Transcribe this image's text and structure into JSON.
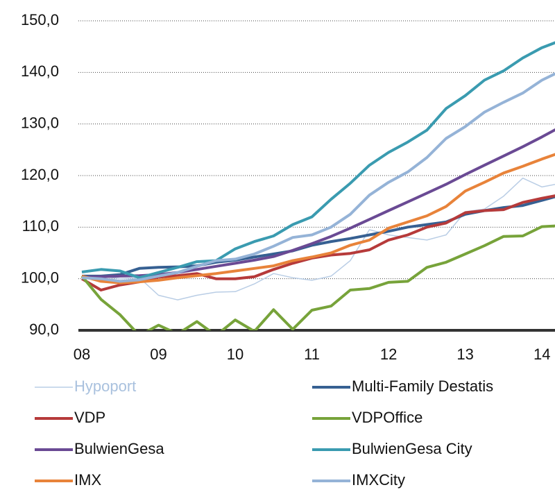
{
  "chart_data": {
    "type": "line",
    "x": [
      2008,
      2008.25,
      2008.5,
      2008.75,
      2009,
      2009.25,
      2009.5,
      2009.75,
      2010,
      2010.25,
      2010.5,
      2010.75,
      2011,
      2011.25,
      2011.5,
      2011.75,
      2012,
      2012.25,
      2012.5,
      2012.75,
      2013,
      2013.25,
      2013.5,
      2013.75,
      2014,
      2014.25
    ],
    "series": [
      {
        "name": "Hypoport",
        "color": "#b9cde5",
        "width": 1.5,
        "values": [
          100,
          100.5,
          100,
          100.2,
          96.8,
          95.9,
          96.8,
          97.4,
          97.5,
          99,
          101,
          100.2,
          99.7,
          100.5,
          103.5,
          109.5,
          108.5,
          108,
          107.5,
          108.5,
          113,
          113.5,
          116,
          119.5,
          117.8,
          118.5
        ]
      },
      {
        "name": "Multi-Family Destatis",
        "color": "#366092",
        "width": 4,
        "values": [
          100.5,
          100.5,
          100.8,
          102,
          102.2,
          102.3,
          102.5,
          103.2,
          103.6,
          104.2,
          104.8,
          105.4,
          106.5,
          107.2,
          107.8,
          108.5,
          109.2,
          110,
          110.5,
          111,
          112.5,
          113.2,
          113.8,
          114.2,
          115.2,
          116.2
        ]
      },
      {
        "name": "VDP",
        "color": "#b63a3a",
        "width": 4,
        "values": [
          100,
          97.8,
          98.8,
          99.4,
          100.3,
          100.6,
          101,
          100,
          100,
          100.4,
          101.8,
          103,
          104,
          104.6,
          104.9,
          105.6,
          107.5,
          108.5,
          110,
          110.8,
          112.8,
          113.2,
          113.4,
          114.8,
          115.6,
          116.3
        ]
      },
      {
        "name": "VDPOffice",
        "color": "#77a33a",
        "width": 4,
        "values": [
          100.5,
          96,
          93,
          89,
          91,
          89.3,
          91.7,
          89,
          92,
          89.8,
          94,
          90.2,
          93.9,
          94.7,
          97.8,
          98.1,
          99.3,
          99.5,
          102.2,
          103.2,
          104.8,
          106.4,
          108.2,
          108.3,
          110.1,
          110.3
        ]
      },
      {
        "name": "BulwienGesa",
        "color": "#6a4a94",
        "width": 4,
        "values": [
          100.3,
          100.4,
          100.5,
          100.6,
          100.8,
          101.2,
          101.8,
          102.4,
          103,
          103.6,
          104.3,
          105.5,
          106.8,
          108.2,
          109.8,
          111.5,
          113.2,
          114.9,
          116.6,
          118.3,
          120.2,
          122,
          123.8,
          125.6,
          127.5,
          129.5
        ]
      },
      {
        "name": "BulwienGesa City",
        "color": "#3a9bb0",
        "width": 4,
        "values": [
          101.3,
          101.8,
          101.5,
          100.2,
          101.2,
          102.2,
          103.3,
          103.5,
          105.8,
          107.2,
          108.3,
          110.5,
          112,
          115.4,
          118.5,
          122,
          124.5,
          126.5,
          128.8,
          133,
          135.5,
          138.5,
          140.3,
          142.8,
          144.8,
          146.2
        ]
      },
      {
        "name": "IMX",
        "color": "#e8833a",
        "width": 4,
        "values": [
          100.5,
          99.5,
          99.2,
          99.4,
          99.7,
          100.2,
          100.6,
          101,
          101.5,
          102,
          102.5,
          103.5,
          104.2,
          105,
          106.5,
          107.5,
          109.8,
          111,
          112.2,
          114,
          117,
          118.7,
          120.5,
          121.8,
          123.2,
          124.5
        ]
      },
      {
        "name": "IMXCity",
        "color": "#95b3d7",
        "width": 4,
        "values": [
          100.2,
          100,
          99.5,
          99.8,
          100.5,
          101.2,
          102.4,
          103.5,
          103.8,
          104.8,
          106.3,
          108,
          108.5,
          110,
          112.5,
          116.2,
          118.7,
          120.7,
          123.5,
          127.2,
          129.5,
          132.3,
          134.2,
          136,
          138.5,
          140.3
        ]
      }
    ],
    "xlim": [
      2007.955,
      2014.17
    ],
    "xticks": [
      {
        "value": 2008,
        "label": "08"
      },
      {
        "value": 2009,
        "label": "09"
      },
      {
        "value": 2010,
        "label": "10"
      },
      {
        "value": 2011,
        "label": "11"
      },
      {
        "value": 2012,
        "label": "12"
      },
      {
        "value": 2013,
        "label": "13"
      },
      {
        "value": 2014,
        "label": "14"
      }
    ],
    "ylim": [
      90,
      150
    ],
    "yticks": [
      {
        "value": 90,
        "label": "90,0"
      },
      {
        "value": 100,
        "label": "100,0"
      },
      {
        "value": 110,
        "label": "110,0"
      },
      {
        "value": 120,
        "label": "120,0"
      },
      {
        "value": 130,
        "label": "130,0"
      },
      {
        "value": 140,
        "label": "140,0"
      },
      {
        "value": 150,
        "label": "150,0"
      }
    ],
    "grid": true
  }
}
